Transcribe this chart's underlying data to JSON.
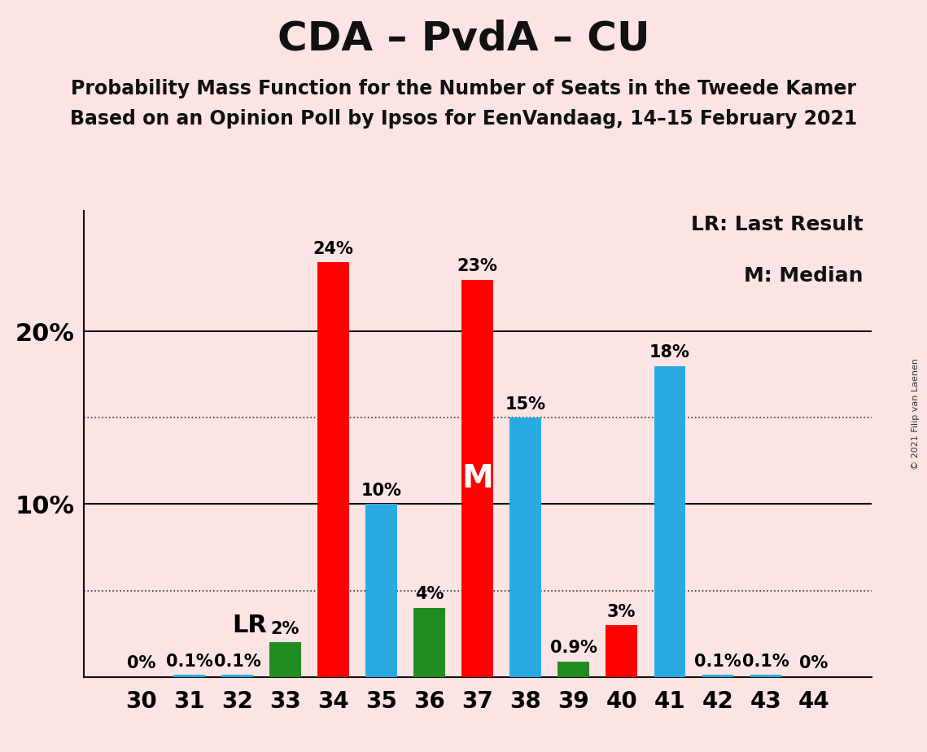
{
  "title": "CDA – PvdA – CU",
  "subtitle1": "Probability Mass Function for the Number of Seats in the Tweede Kamer",
  "subtitle2": "Based on an Opinion Poll by Ipsos for EenVandaag, 14–15 February 2021",
  "copyright": "© 2021 Filip van Laenen",
  "legend_lr": "LR: Last Result",
  "legend_m": "M: Median",
  "background_color": "#fce4e4",
  "seats": [
    30,
    31,
    32,
    33,
    34,
    35,
    36,
    37,
    38,
    39,
    40,
    41,
    42,
    43,
    44
  ],
  "probabilities": [
    0.0,
    0.1,
    0.1,
    2.0,
    24.0,
    10.0,
    4.0,
    23.0,
    15.0,
    0.9,
    3.0,
    18.0,
    0.1,
    0.1,
    0.0
  ],
  "bar_colors": [
    "#29ABE2",
    "#29ABE2",
    "#29ABE2",
    "#228B22",
    "#FF0000",
    "#29ABE2",
    "#228B22",
    "#FF0000",
    "#29ABE2",
    "#228B22",
    "#FF0000",
    "#29ABE2",
    "#29ABE2",
    "#29ABE2",
    "#29ABE2"
  ],
  "median_seat": 37,
  "lr_seat": 33,
  "dotted_lines": [
    5.0,
    15.0
  ],
  "solid_lines": [
    10.0,
    20.0
  ],
  "ylim": [
    0,
    27
  ],
  "title_fontsize": 36,
  "subtitle_fontsize": 17,
  "bar_label_fontsize": 15,
  "ytick_fontsize": 22,
  "xtick_fontsize": 20,
  "legend_fontsize": 18,
  "annotation_fontsize": 22,
  "m_fontsize": 28
}
